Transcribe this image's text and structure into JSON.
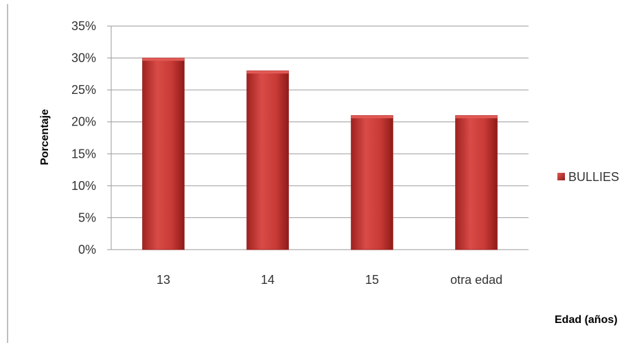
{
  "chart_data": {
    "type": "bar",
    "title": "",
    "xlabel": "Edad (años)",
    "ylabel": "Porcentaje",
    "categories": [
      "13",
      "14",
      "15",
      "otra edad"
    ],
    "series": [
      {
        "name": "BULLIES",
        "values": [
          30,
          28,
          21,
          21
        ],
        "color": "#c0302d"
      }
    ],
    "ylim": [
      0,
      35
    ],
    "yticks": [
      0,
      5,
      10,
      15,
      20,
      25,
      30,
      35
    ],
    "ytick_format": "percent",
    "grid": true,
    "legend": "right",
    "colors": {
      "bar_fill": "#c0302d",
      "bar_highlight": "#e25a55",
      "bar_shadow": "#8e1b19",
      "grid": "#9a9a9a",
      "axis": "#9a9a9a"
    }
  }
}
